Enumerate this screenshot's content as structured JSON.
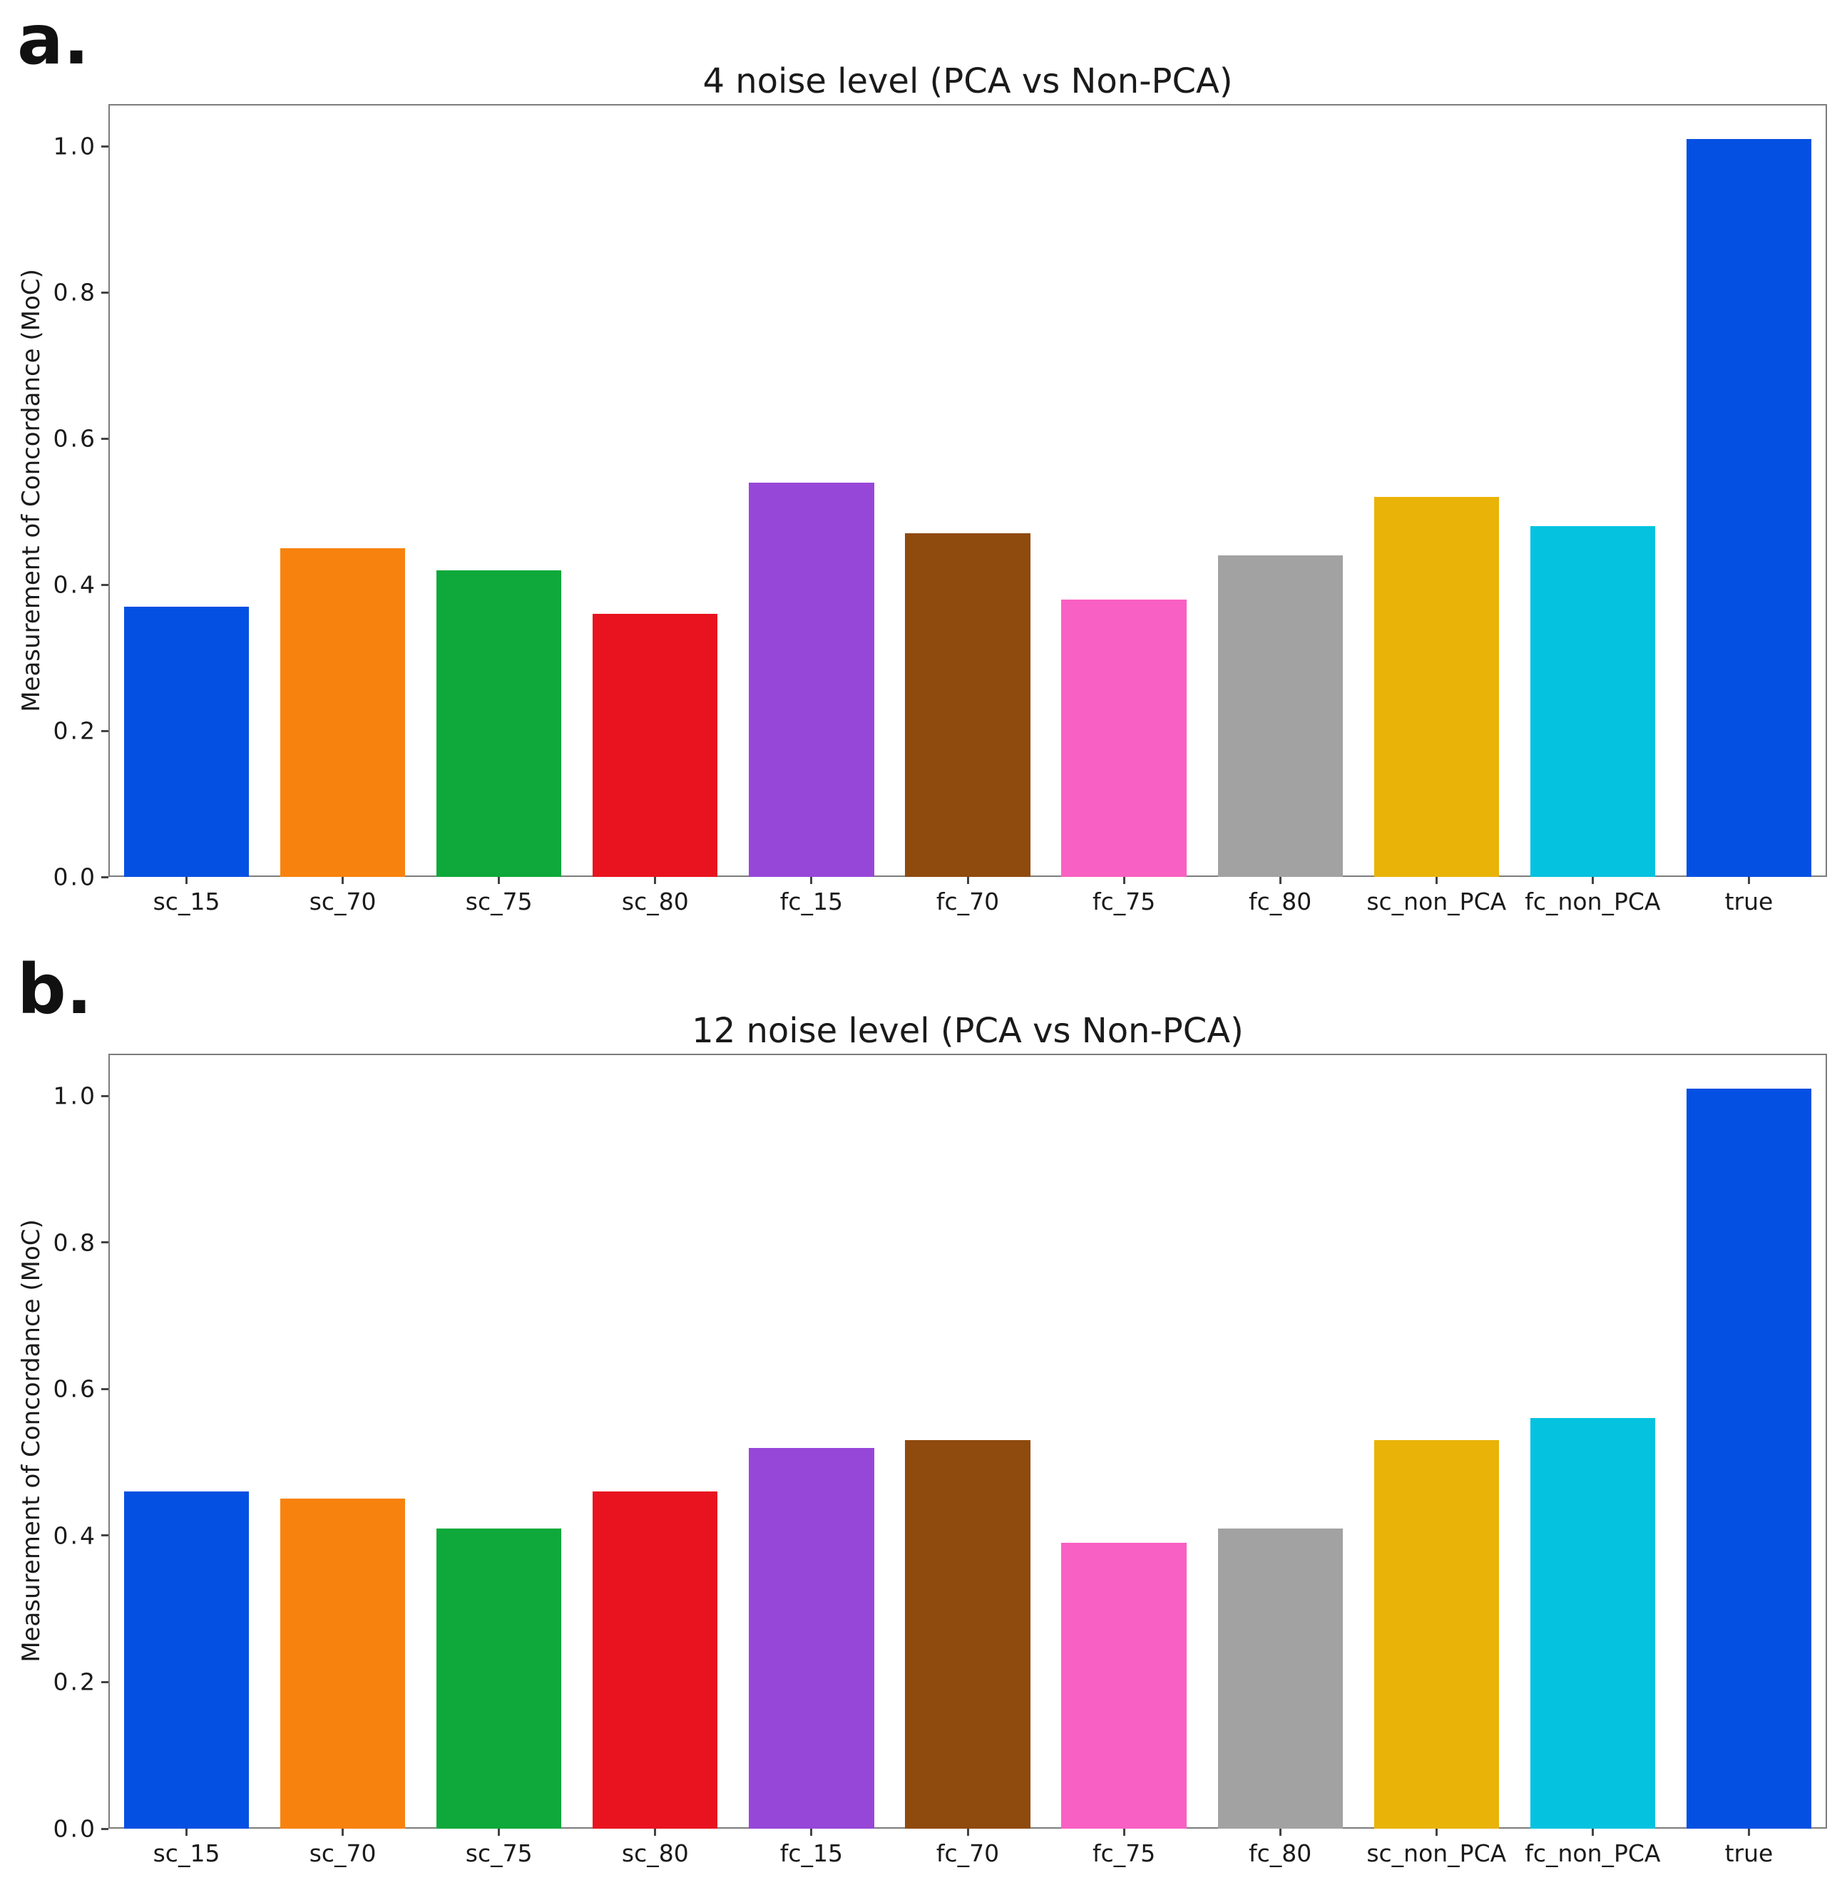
{
  "chart_data": [
    {
      "type": "bar",
      "panel_label": "a.",
      "title": "4 noise level (PCA vs Non-PCA)",
      "xlabel": "",
      "ylabel": "Measurement of Concordance (MoC)",
      "categories": [
        "sc_15",
        "sc_70",
        "sc_75",
        "sc_80",
        "fc_15",
        "fc_70",
        "fc_75",
        "fc_80",
        "sc_non_PCA",
        "fc_non_PCA",
        "true"
      ],
      "values": [
        0.37,
        0.45,
        0.42,
        0.36,
        0.54,
        0.47,
        0.38,
        0.44,
        0.52,
        0.48,
        1.01
      ],
      "bar_colors": [
        "#0450e2",
        "#f8820e",
        "#0ea93a",
        "#e8131f",
        "#9747d8",
        "#8f4a0e",
        "#f960c3",
        "#a2a2a2",
        "#e9b307",
        "#05c2df",
        "#0450e2"
      ],
      "yticks": [
        1.0,
        0.8,
        0.6,
        0.4,
        0.2,
        0.0
      ],
      "ylim": [
        0,
        1.0576
      ],
      "grid": false,
      "legend": "none"
    },
    {
      "type": "bar",
      "panel_label": "b.",
      "title": "12 noise level (PCA vs Non-PCA)",
      "xlabel": "",
      "ylabel": "Measurement of Concordance (MoC)",
      "categories": [
        "sc_15",
        "sc_70",
        "sc_75",
        "sc_80",
        "fc_15",
        "fc_70",
        "fc_75",
        "fc_80",
        "sc_non_PCA",
        "fc_non_PCA",
        "true"
      ],
      "values": [
        0.46,
        0.45,
        0.41,
        0.46,
        0.52,
        0.53,
        0.39,
        0.41,
        0.53,
        0.56,
        1.01
      ],
      "bar_colors": [
        "#0450e2",
        "#f8820e",
        "#0ea93a",
        "#e8131f",
        "#9747d8",
        "#8f4a0e",
        "#f960c3",
        "#a2a2a2",
        "#e9b307",
        "#05c2df",
        "#0450e2"
      ],
      "yticks": [
        1.0,
        0.8,
        0.6,
        0.4,
        0.2,
        0.0
      ],
      "ylim": [
        0,
        1.0576
      ],
      "grid": false,
      "legend": "none"
    }
  ]
}
